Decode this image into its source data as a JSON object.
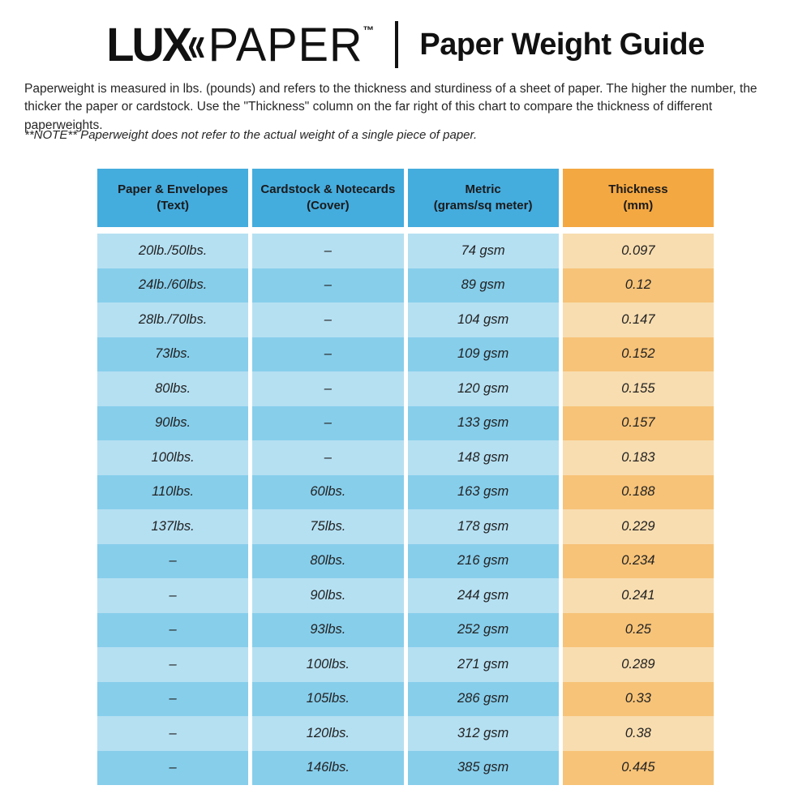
{
  "logo": {
    "lux": "LUX",
    "chevron_glyph": "«",
    "paper": "PAPER",
    "trademark": "™"
  },
  "page_title": "Paper Weight Guide",
  "intro_text": "Paperweight is measured in lbs. (pounds) and refers to the thickness and sturdiness of a sheet of paper. The higher the number, the thicker the paper or cardstock. Use the \"Thickness\" column on the far right of this chart to compare the thickness of different paperweights.",
  "note_text": "**NOTE** Paperweight does not refer to the actual weight of a single piece of paper.",
  "colors": {
    "header_blue": "#45ACDE",
    "header_orange": "#F4A842",
    "row_blue_light": "#B5E0F2",
    "row_blue_dark": "#87CEEB",
    "row_orange_light": "#F8DDB0",
    "row_orange_dark": "#F7C378",
    "text_dark": "#1A1A1A",
    "logo_black": "#111111"
  },
  "chart_data": {
    "type": "table",
    "title": "Paper Weight Guide",
    "columns": [
      "Paper & Envelopes\n(Text)",
      "Cardstock & Notecards\n(Cover)",
      "Metric\n(grams/sq meter)",
      "Thickness\n(mm)"
    ],
    "rows": [
      [
        "20lb./50lbs.",
        "–",
        "74 gsm",
        "0.097"
      ],
      [
        "24lb./60lbs.",
        "–",
        "89 gsm",
        "0.12"
      ],
      [
        "28lb./70lbs.",
        "–",
        "104 gsm",
        "0.147"
      ],
      [
        "73lbs.",
        "–",
        "109 gsm",
        "0.152"
      ],
      [
        "80lbs.",
        "–",
        "120 gsm",
        "0.155"
      ],
      [
        "90lbs.",
        "–",
        "133 gsm",
        "0.157"
      ],
      [
        "100lbs.",
        "–",
        "148 gsm",
        "0.183"
      ],
      [
        "110lbs.",
        "60lbs.",
        "163 gsm",
        "0.188"
      ],
      [
        "137lbs.",
        "75lbs.",
        "178 gsm",
        "0.229"
      ],
      [
        "–",
        "80lbs.",
        "216 gsm",
        "0.234"
      ],
      [
        "–",
        "90lbs.",
        "244 gsm",
        "0.241"
      ],
      [
        "–",
        "93lbs.",
        "252 gsm",
        "0.25"
      ],
      [
        "–",
        "100lbs.",
        "271 gsm",
        "0.289"
      ],
      [
        "–",
        "105lbs.",
        "286 gsm",
        "0.33"
      ],
      [
        "–",
        "120lbs.",
        "312 gsm",
        "0.38"
      ],
      [
        "–",
        "146lbs.",
        "385 gsm",
        "0.445"
      ]
    ]
  }
}
